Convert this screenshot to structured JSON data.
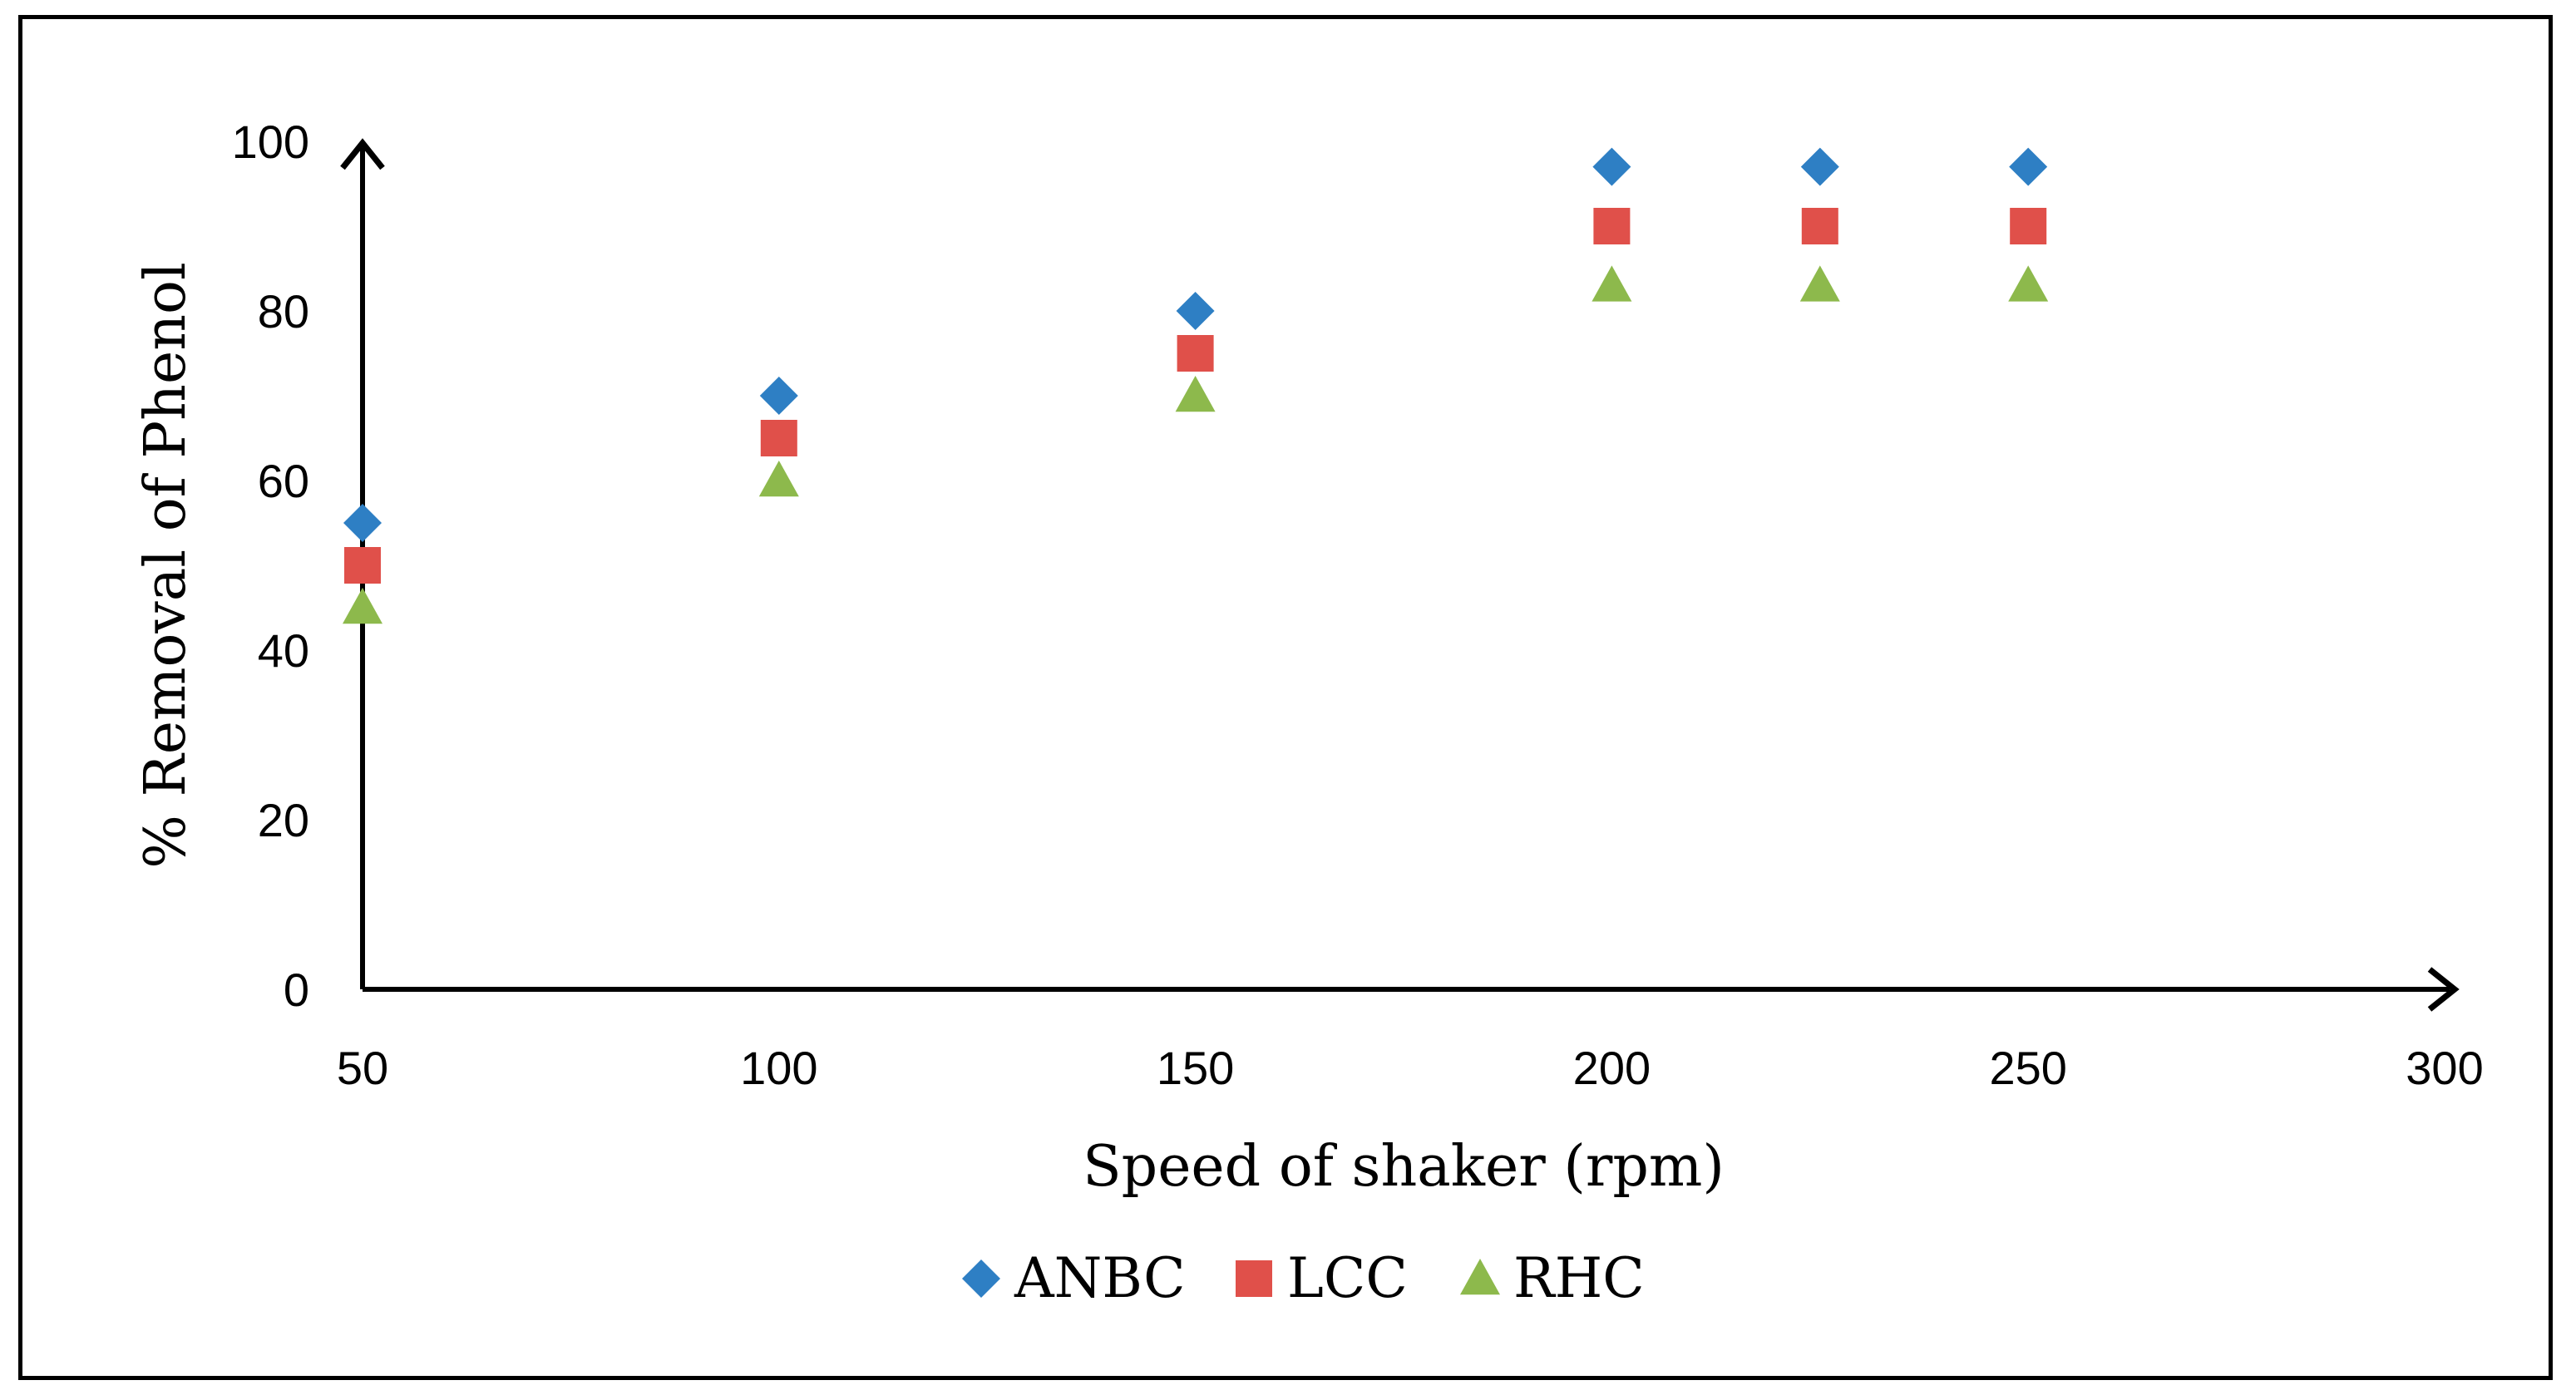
{
  "chart_data": {
    "type": "scatter",
    "title": "",
    "xlabel": "Speed of shaker (rpm)",
    "ylabel": "%  Removal of Phenol",
    "xlim": [
      50,
      300
    ],
    "ylim": [
      0,
      100
    ],
    "x_ticks": [
      "50",
      "100",
      "150",
      "200",
      "250",
      "300"
    ],
    "x_tick_values": [
      50,
      100,
      150,
      200,
      250,
      300
    ],
    "y_ticks": [
      "0",
      "20",
      "40",
      "60",
      "80",
      "100"
    ],
    "y_tick_values": [
      0,
      20,
      40,
      60,
      80,
      100
    ],
    "grid": false,
    "legend_position": "bottom",
    "x": [
      50,
      100,
      150,
      200,
      225,
      250
    ],
    "series": [
      {
        "name": "ANBC",
        "marker": "diamond",
        "color": "#2E7FC4",
        "values": [
          55,
          70,
          80,
          97,
          97,
          97
        ]
      },
      {
        "name": "LCC",
        "marker": "square",
        "color": "#E0504A",
        "values": [
          50,
          65,
          75,
          90,
          90,
          90
        ]
      },
      {
        "name": "RHC",
        "marker": "triangle",
        "color": "#8DB94C",
        "values": [
          45,
          60,
          70,
          83,
          83,
          83
        ]
      }
    ]
  }
}
